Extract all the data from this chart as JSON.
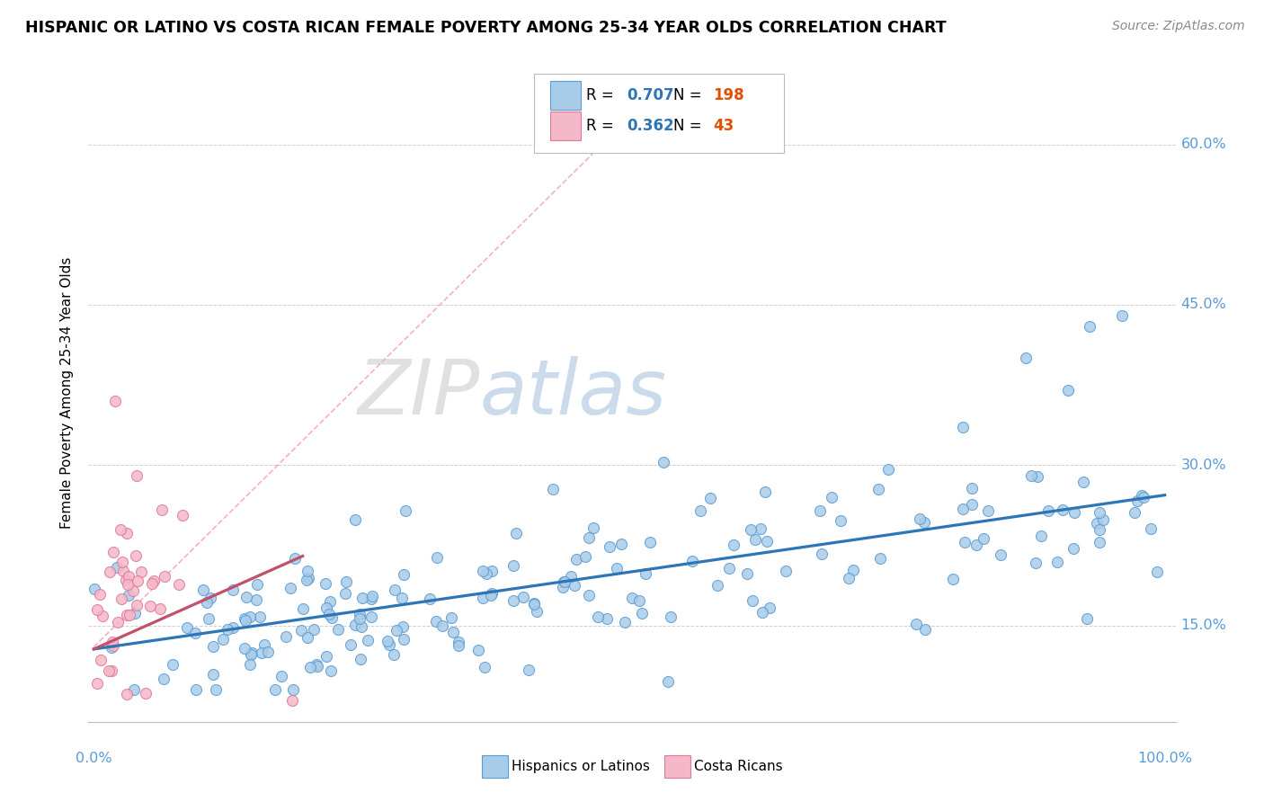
{
  "title": "HISPANIC OR LATINO VS COSTA RICAN FEMALE POVERTY AMONG 25-34 YEAR OLDS CORRELATION CHART",
  "source": "Source: ZipAtlas.com",
  "ylabel": "Female Poverty Among 25-34 Year Olds",
  "legend1_R": "0.707",
  "legend1_N": "198",
  "legend2_R": "0.362",
  "legend2_N": "43",
  "blue_scatter_color": "#a8cce8",
  "blue_edge_color": "#5b9bd5",
  "pink_scatter_color": "#f4b8c8",
  "pink_edge_color": "#e07898",
  "blue_line_color": "#2e75b6",
  "pink_line_color": "#c0516a",
  "diag_line_color": "#f4a8b8",
  "grid_color": "#d0d0d0",
  "axis_label_color": "#5b9bd5",
  "watermark_zip_color": "#c8c8c8",
  "watermark_atlas_color": "#a8c4e0",
  "N_color": "#e05000",
  "R_color": "#2e75b6",
  "ytick_positions": [
    0.15,
    0.3,
    0.45,
    0.6
  ],
  "ytick_labels": [
    "15.0%",
    "30.0%",
    "45.0%",
    "60.0%"
  ],
  "xlim": [
    0.0,
    1.0
  ],
  "ylim": [
    0.07,
    0.66
  ]
}
